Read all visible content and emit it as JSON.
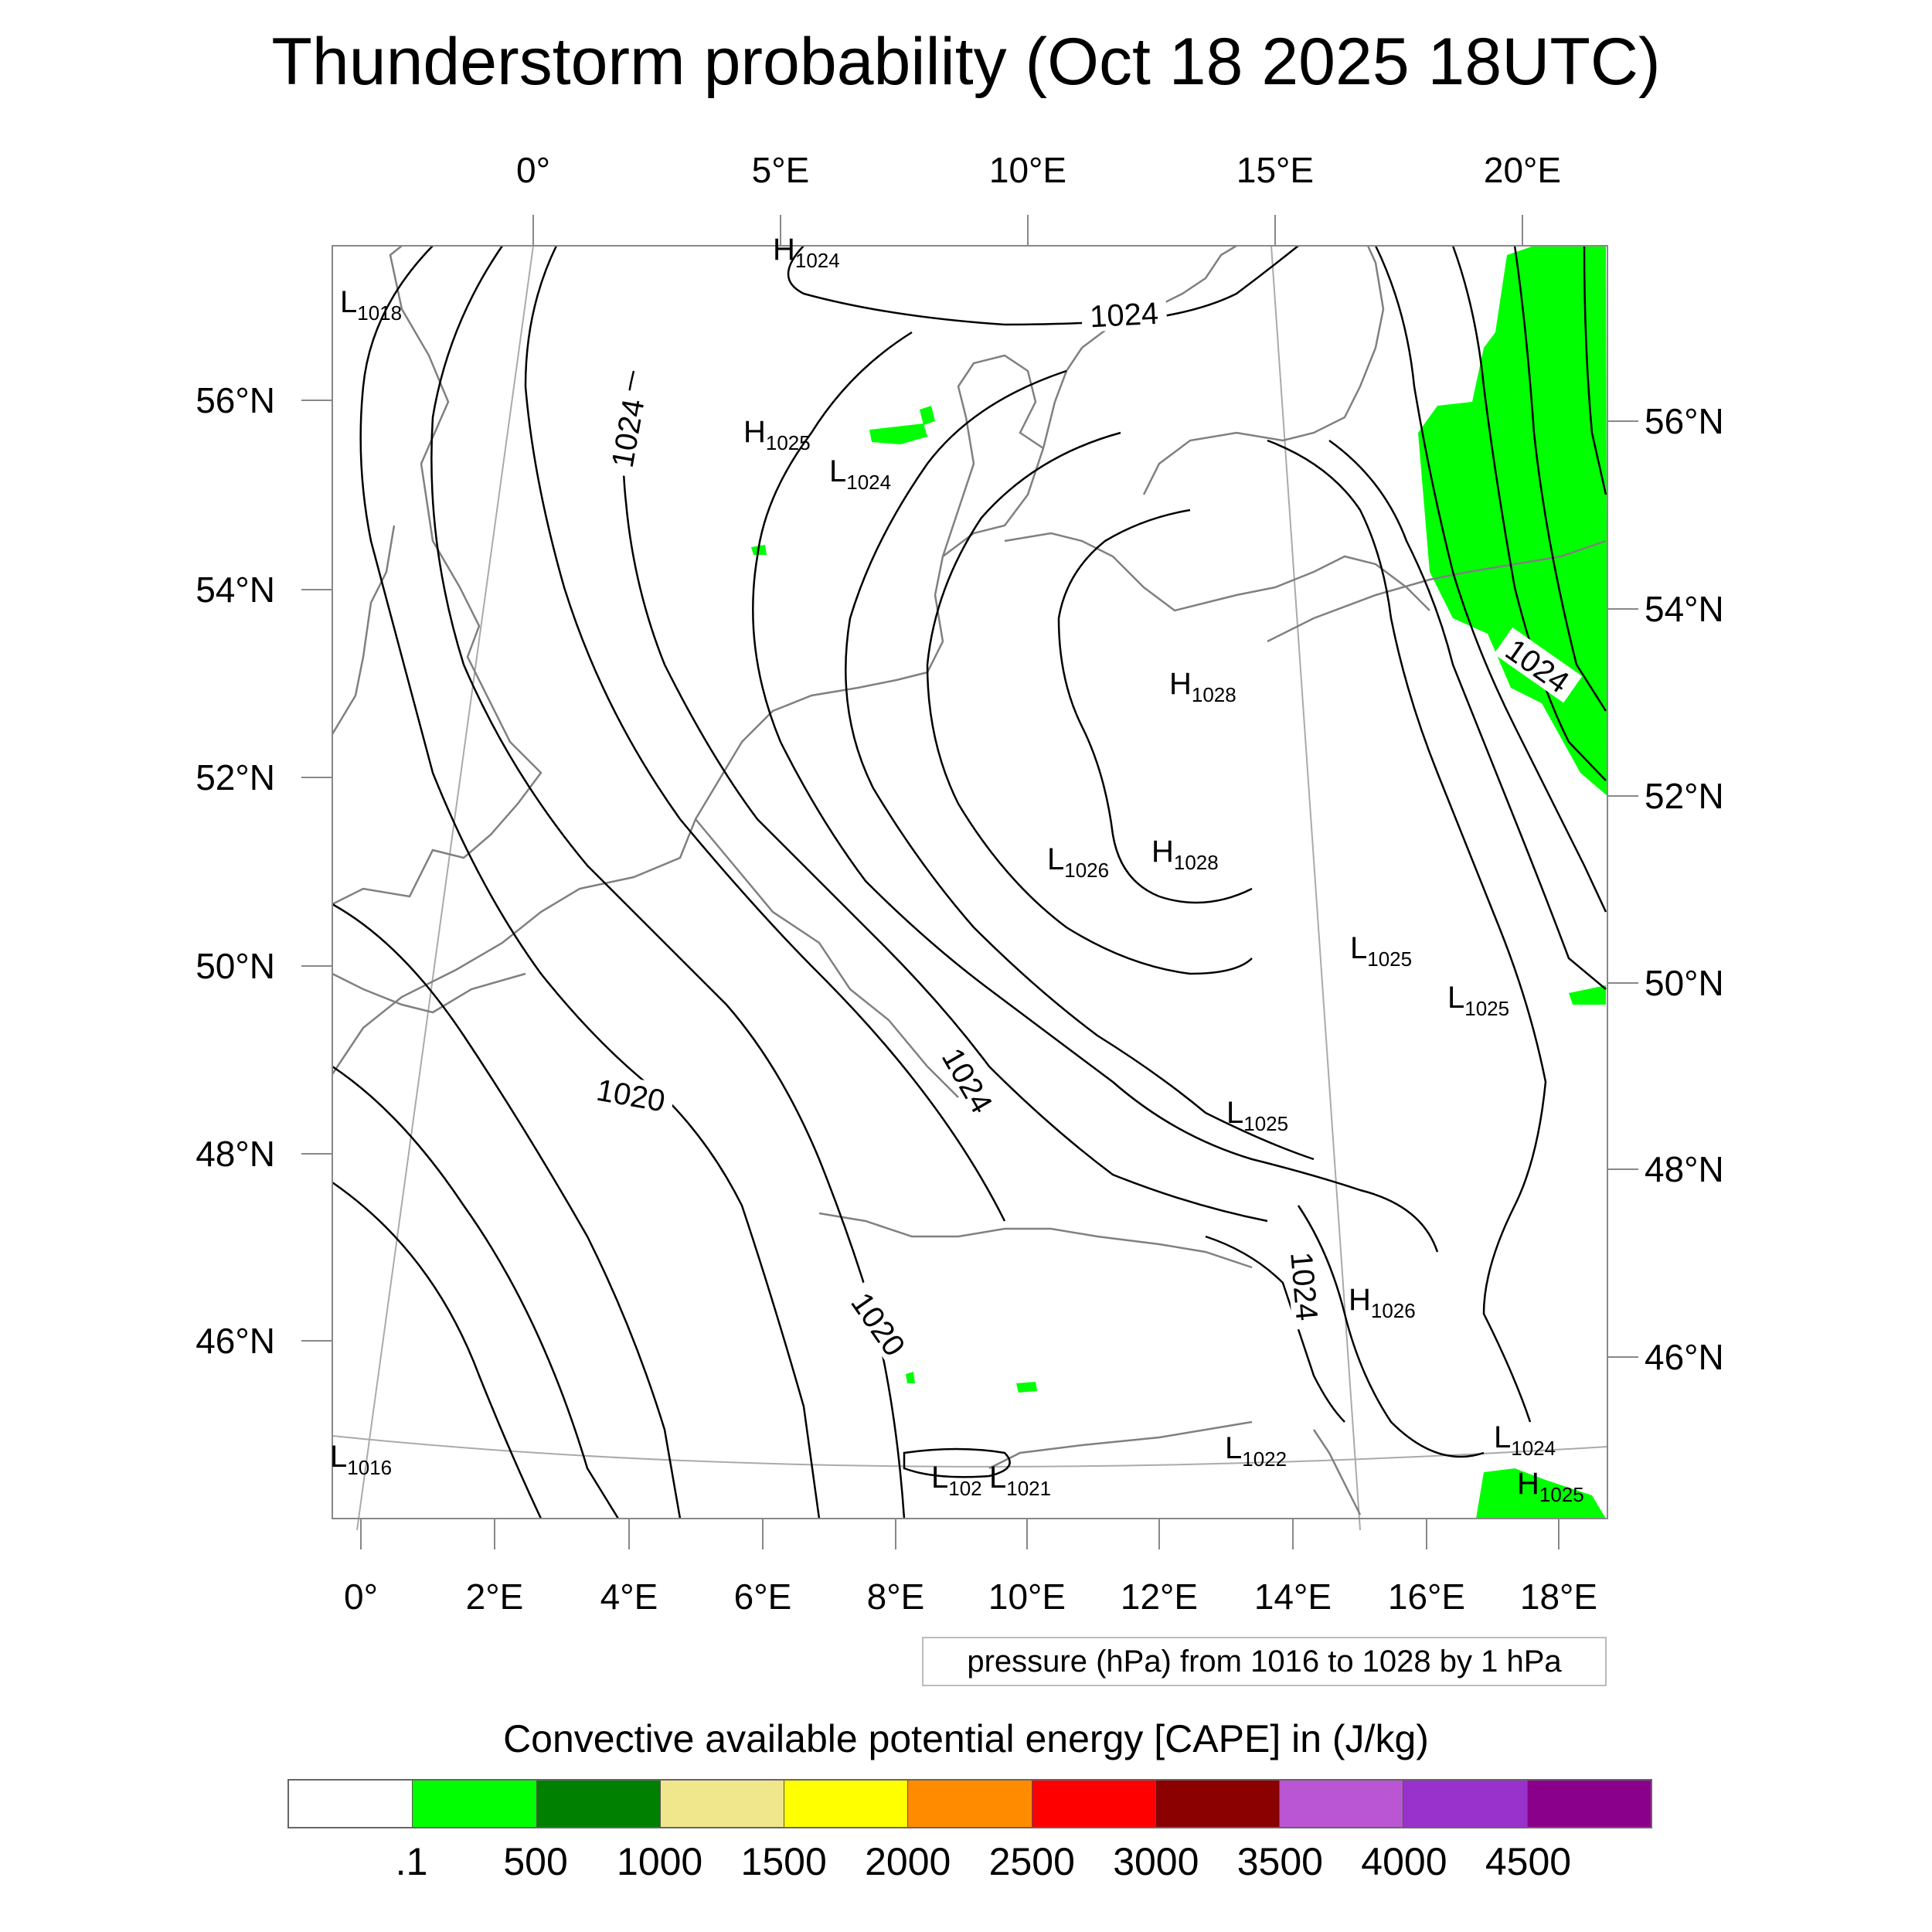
{
  "title": "Thunderstorm probability (Oct 18 2025 18UTC)",
  "map": {
    "top_lon_labels": [
      "0°",
      "5°E",
      "10°E",
      "15°E",
      "20°E"
    ],
    "bottom_lon_labels": [
      "0°",
      "2°E",
      "4°E",
      "6°E",
      "8°E",
      "10°E",
      "12°E",
      "14°E",
      "16°E",
      "18°E"
    ],
    "left_lat_labels": [
      "56°N",
      "54°N",
      "52°N",
      "50°N",
      "48°N",
      "46°N"
    ],
    "right_lat_labels": [
      "56°N",
      "54°N",
      "52°N",
      "50°N",
      "48°N",
      "46°N"
    ],
    "pressure_centers": [
      {
        "type": "L",
        "value": "1018"
      },
      {
        "type": "H",
        "value": "1024"
      },
      {
        "type": "H",
        "value": "1025"
      },
      {
        "type": "L",
        "value": "1024"
      },
      {
        "type": "H",
        "value": "1028"
      },
      {
        "type": "L",
        "value": "1026"
      },
      {
        "type": "H",
        "value": "1028"
      },
      {
        "type": "L",
        "value": "1025"
      },
      {
        "type": "L",
        "value": "1025"
      },
      {
        "type": "L",
        "value": "1025"
      },
      {
        "type": "H",
        "value": "1026"
      },
      {
        "type": "L",
        "value": "1022"
      },
      {
        "type": "L",
        "value": "1024"
      },
      {
        "type": "H",
        "value": "1025"
      },
      {
        "type": "L",
        "value": "1016"
      },
      {
        "type": "L",
        "value": "102"
      },
      {
        "type": "L",
        "value": "1021"
      }
    ],
    "contour_labels": [
      "1024",
      "1024",
      "1024",
      "1024",
      "1020",
      "1024",
      "1020"
    ],
    "cape_fill_color": "#00ff00",
    "coastline_color": "#808080",
    "isobar_color": "#000000"
  },
  "pressure_legend": "pressure (hPa) from 1016 to 1028 by 1 hPa",
  "colorbar": {
    "title": "Convective available potential energy [CAPE] in (J/kg)",
    "colors": [
      "#ffffff",
      "#00ff00",
      "#008000",
      "#f0e68c",
      "#ffff00",
      "#ff8c00",
      "#ff0000",
      "#8b0000",
      "#ba55d3",
      "#9932cc",
      "#8b008b"
    ],
    "labels": [
      ".1",
      "500",
      "1000",
      "1500",
      "2000",
      "2500",
      "3000",
      "3500",
      "4000",
      "4500"
    ]
  }
}
